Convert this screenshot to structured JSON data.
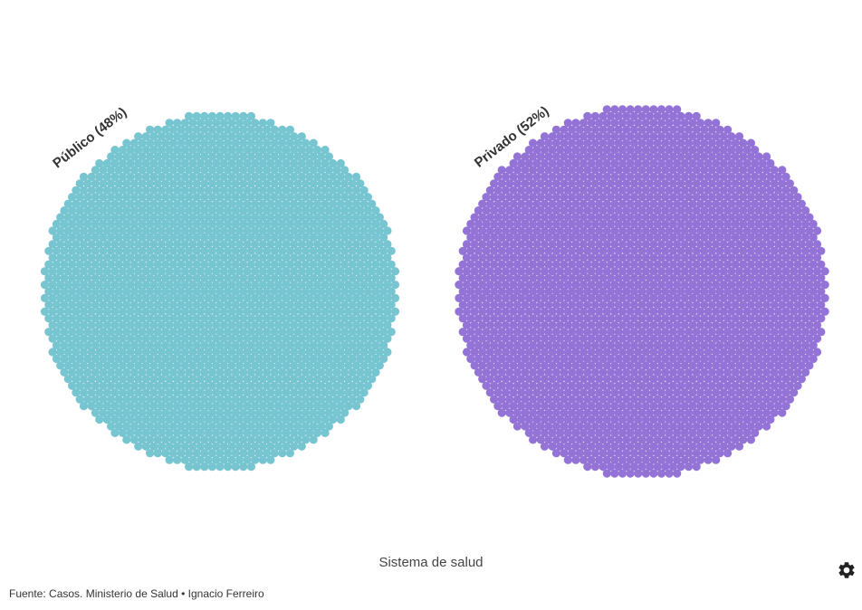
{
  "chart_data": {
    "type": "dot-cluster",
    "xlabel": "Sistema de salud",
    "groups": [
      {
        "label": "Público (48%)",
        "name": "Público",
        "percent": 48,
        "color": "#76c5d1"
      },
      {
        "label": "Privado (52%)",
        "name": "Privado",
        "percent": 52,
        "color": "#9373d6"
      }
    ],
    "legend": "none",
    "grid": false
  },
  "footer": {
    "source": "Fuente: Casos. Ministerio de Salud • Ignacio Ferreiro"
  },
  "icons": {
    "settings": "gear-icon"
  }
}
